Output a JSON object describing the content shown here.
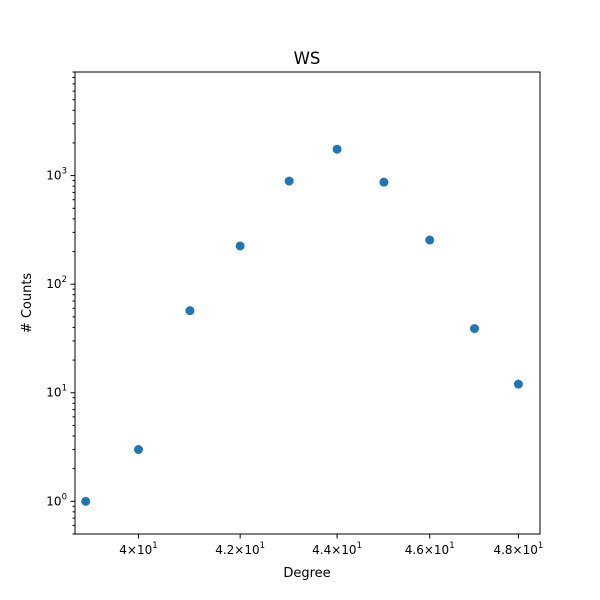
{
  "chart_data": {
    "type": "scatter",
    "title": "WS",
    "xlabel": "Degree",
    "ylabel": "# Counts",
    "x_scale": "log",
    "y_scale": "log",
    "xlim": [
      38.8,
      48.5
    ],
    "ylim": [
      0.5,
      9000
    ],
    "grid": false,
    "x_ticks": [
      {
        "value": 40,
        "base": "4",
        "exp": "1"
      },
      {
        "value": 42,
        "base": "4.2",
        "exp": "1"
      },
      {
        "value": 44,
        "base": "4.4",
        "exp": "1"
      },
      {
        "value": 46,
        "base": "4.6",
        "exp": "1"
      },
      {
        "value": 48,
        "base": "4.8",
        "exp": "1"
      }
    ],
    "y_ticks": [
      {
        "value": 1,
        "exp": "0"
      },
      {
        "value": 10,
        "exp": "1"
      },
      {
        "value": 100,
        "exp": "2"
      },
      {
        "value": 1000,
        "exp": "3"
      }
    ],
    "series": [
      {
        "color": "#1f77b4",
        "x": [
          39,
          40,
          41,
          42,
          43,
          44,
          45,
          46,
          47,
          48
        ],
        "y": [
          1,
          3,
          57,
          225,
          890,
          1750,
          870,
          255,
          39,
          12
        ]
      }
    ]
  }
}
